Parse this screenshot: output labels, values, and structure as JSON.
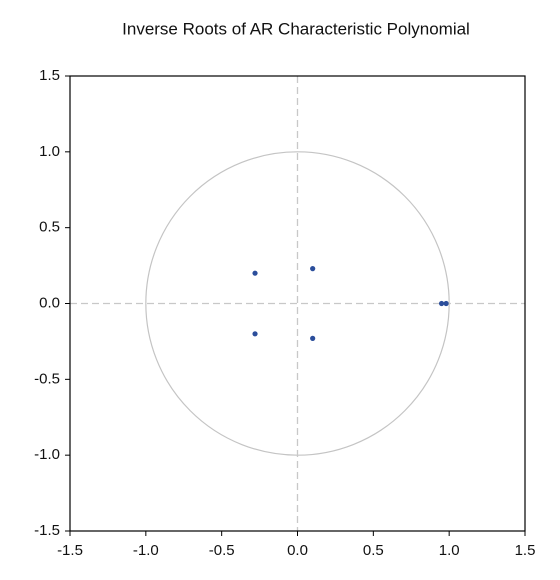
{
  "chart_data": {
    "type": "scatter",
    "title": "Inverse Roots of AR Characteristic Polynomial",
    "x": [
      -0.28,
      -0.28,
      0.1,
      0.1,
      0.95,
      0.98
    ],
    "values": [
      0.2,
      -0.2,
      0.23,
      -0.23,
      0.0,
      0.0
    ],
    "color": "#2b4e9b",
    "xlim": [
      -1.5,
      1.5
    ],
    "ylim": [
      -1.5,
      1.5
    ],
    "xticks": [
      -1.5,
      {
        "value": -1,
        "label": "-1.0"
      },
      -0.5,
      {
        "value": 0,
        "label": "0.0"
      },
      0.5,
      {
        "value": 1,
        "label": "1.0"
      },
      1.5
    ],
    "yticks": [
      1.5,
      {
        "value": 1,
        "label": "1.0"
      },
      0.5,
      {
        "value": 0,
        "label": "0.0"
      },
      -0.5,
      {
        "value": -1,
        "label": "-1.0"
      },
      -1.5
    ],
    "unit_circle": true,
    "zero_lines": true
  }
}
